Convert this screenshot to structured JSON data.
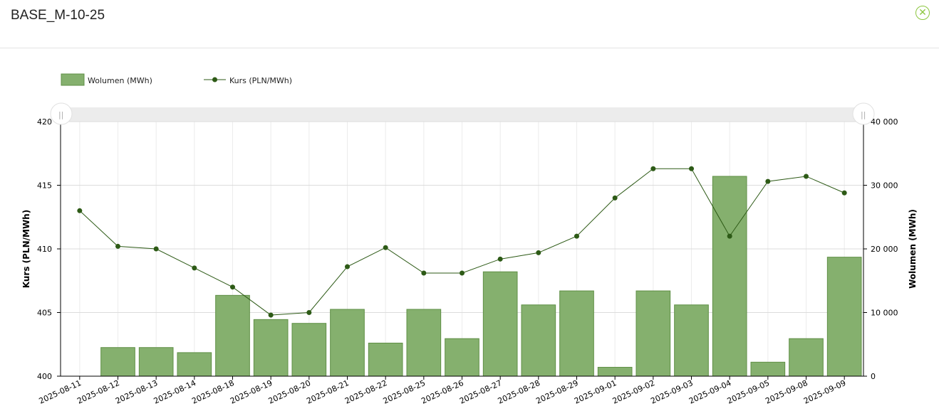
{
  "header": {
    "title": "BASE_M-10-25",
    "close_icon": "close-circle-icon"
  },
  "colors": {
    "bar": "#85b06e",
    "bar_stroke": "#5f8f45",
    "line": "#2d5a16",
    "accent": "#8cc63f"
  },
  "chart_data": {
    "type": "bar+line",
    "categories": [
      "2025-08-11",
      "2025-08-12",
      "2025-08-13",
      "2025-08-14",
      "2025-08-18",
      "2025-08-19",
      "2025-08-20",
      "2025-08-21",
      "2025-08-22",
      "2025-08-25",
      "2025-08-26",
      "2025-08-27",
      "2025-08-28",
      "2025-08-29",
      "2025-09-01",
      "2025-09-02",
      "2025-09-03",
      "2025-09-04",
      "2025-09-05",
      "2025-09-08",
      "2025-09-09"
    ],
    "series": [
      {
        "name": "Wolumen (MWh)",
        "type": "bar",
        "axis": "right",
        "values": [
          0,
          4500,
          4500,
          3700,
          12700,
          8900,
          8300,
          10500,
          5200,
          10500,
          5900,
          16400,
          11200,
          13400,
          1400,
          13400,
          11200,
          31400,
          2200,
          5900,
          18700
        ]
      },
      {
        "name": "Kurs (PLN/MWh)",
        "type": "line",
        "axis": "left",
        "values": [
          413.0,
          410.2,
          410.0,
          408.5,
          407.0,
          404.8,
          405.0,
          408.6,
          410.1,
          408.1,
          408.1,
          409.2,
          409.7,
          411.0,
          414.0,
          416.3,
          416.3,
          411.0,
          415.3,
          415.7,
          414.4
        ]
      }
    ],
    "ylabel_left": "Kurs (PLN/MWh)",
    "ylabel_right": "Wolumen (MWh)",
    "ylim_left": [
      400,
      420
    ],
    "ylim_right": [
      0,
      40000
    ],
    "yticks_left": [
      "400",
      "405",
      "410",
      "415",
      "420"
    ],
    "yticks_right": [
      "0",
      "10 000",
      "20 000",
      "30 000",
      "40 000"
    ],
    "grid": true,
    "legend": "top-left",
    "range_slider": true
  }
}
